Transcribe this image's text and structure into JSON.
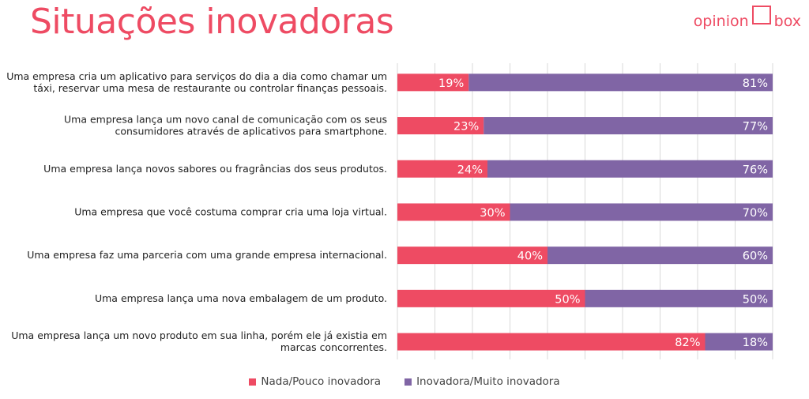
{
  "header": {
    "title": "Situações inovadoras",
    "logo_left": "opinion",
    "logo_right": "box"
  },
  "colors": {
    "accent": "#ee4b63",
    "series1": "#ee4b63",
    "series2": "#8065a5",
    "grid": "#d9d9d9"
  },
  "chart_data": {
    "type": "bar",
    "orientation": "horizontal",
    "stacked": true,
    "title": "",
    "xlabel": "",
    "ylabel": "",
    "xlim": [
      0,
      100
    ],
    "grid": true,
    "legend_position": "bottom",
    "categories": [
      [
        "Uma empresa cria um aplicativo para serviços do dia a dia como chamar um",
        "táxi, reservar uma mesa de restaurante ou controlar finanças pessoais."
      ],
      [
        "Uma empresa lança um novo canal de comunicação com os seus",
        "consumidores através de aplicativos para smartphone."
      ],
      [
        "Uma empresa lança novos sabores ou fragrâncias dos seus produtos."
      ],
      [
        "Uma empresa que você costuma comprar cria uma loja virtual."
      ],
      [
        "Uma empresa faz uma parceria com uma grande empresa internacional."
      ],
      [
        "Uma empresa lança uma nova embalagem de um produto."
      ],
      [
        "Uma empresa lança um novo produto em sua linha, porém ele já existia em",
        "marcas concorrentes."
      ]
    ],
    "series": [
      {
        "name": "Nada/Pouco inovadora",
        "color": "#ee4b63",
        "values": [
          19,
          23,
          24,
          30,
          40,
          50,
          82
        ],
        "labels": [
          "19%",
          "23%",
          "24%",
          "30%",
          "40%",
          "50%",
          "82%"
        ]
      },
      {
        "name": "Inovadora/Muito inovadora",
        "color": "#8065a5",
        "values": [
          81,
          77,
          76,
          70,
          60,
          50,
          18
        ],
        "labels": [
          "81%",
          "77%",
          "76%",
          "70%",
          "60%",
          "50%",
          "18%"
        ]
      }
    ]
  }
}
